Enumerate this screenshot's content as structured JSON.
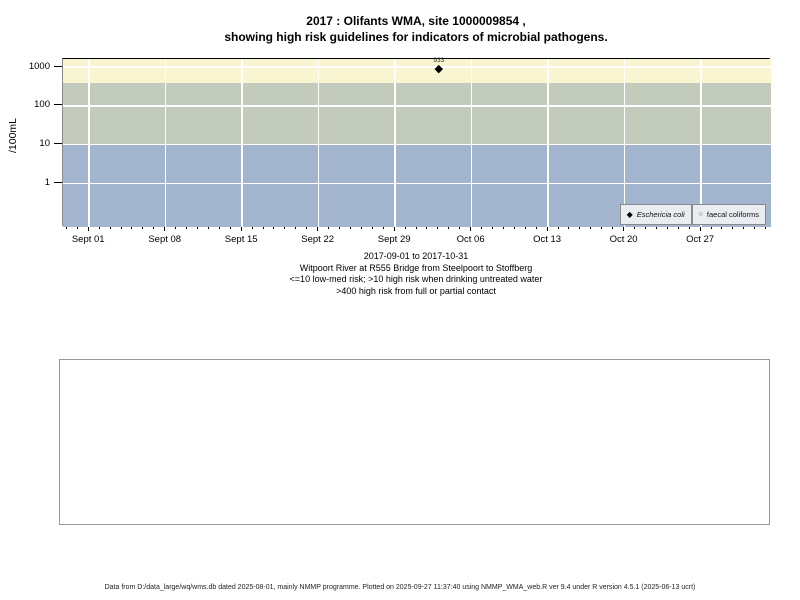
{
  "title": {
    "line1": "2017 : Olifants WMA, site 1000009854 ,",
    "line2": "showing high risk guidelines for indicators of microbial pathogens."
  },
  "chart_data": {
    "type": "scatter",
    "title": "2017 : Olifants WMA, site 1000009854 , showing high risk guidelines for indicators of microbial pathogens.",
    "ylabel": "/100mL",
    "xlabel": "",
    "y_scale": "log10",
    "y_ticks": [
      1,
      10,
      100,
      1000
    ],
    "y_log_min": -1.13,
    "y_log_max": 3.21,
    "grid": true,
    "grid_color": "#ffffff",
    "x_domain": {
      "start_date": "2017-09-01",
      "end_date": "2017-10-31",
      "min_day": -2.4,
      "max_day": 62.4
    },
    "x_ticks": [
      {
        "day": 0,
        "label": "Sept 01"
      },
      {
        "day": 7,
        "label": "Sept 08"
      },
      {
        "day": 14,
        "label": "Sept 15"
      },
      {
        "day": 21,
        "label": "Sept 22"
      },
      {
        "day": 28,
        "label": "Sept 29"
      },
      {
        "day": 35,
        "label": "Oct 06"
      },
      {
        "day": 42,
        "label": "Oct 13"
      },
      {
        "day": 49,
        "label": "Oct 20"
      },
      {
        "day": 56,
        "label": "Oct 27"
      }
    ],
    "minor_tick_days": {
      "from": -2,
      "to": 62
    },
    "bands": [
      {
        "name": "high-risk-contact",
        "min": 400,
        "max": "top",
        "color": "#f9f5d0",
        "meaning": ">400 high risk from full or partial contact"
      },
      {
        "name": "high-risk-drinking",
        "min": 10,
        "max": 400,
        "color": "#c3cbbc",
        "meaning": ">10 high risk when drinking untreated water"
      },
      {
        "name": "low-med-risk",
        "min": "bottom",
        "max": 10,
        "color": "#a2b4ce",
        "meaning": "<=10 low-med risk"
      }
    ],
    "series": [
      {
        "name": "Eschericia coli",
        "marker": "filled-diamond",
        "color": "#000000",
        "points": [
          {
            "date": "2017-10-03",
            "day": 32,
            "value": 933,
            "label": "933"
          }
        ]
      },
      {
        "name": "faecal coliforms",
        "marker": "open-circle",
        "color": "#666666",
        "points": []
      }
    ],
    "legend": {
      "position": "bottom-right",
      "entries": [
        "Eschericia coli",
        "faecal coliforms"
      ]
    }
  },
  "subtitle": {
    "lines": [
      "2017-09-01 to 2017-10-31",
      "Witpoort River at R555 Bridge from Steelpoort to Stoffberg",
      "<=10 low-med risk; >10 high risk when drinking untreated water",
      ">400 high risk from full or partial contact"
    ]
  },
  "footer": {
    "text": "Data from D:/data_large/wq/wms.db dated 2025-08-01, mainly NMMP programme. Plotted on 2025-09-27 11:37:40 using NMMP_WMA_web.R ver 9.4 under R version 4.5.1 (2025-06-13 ucrt)"
  }
}
